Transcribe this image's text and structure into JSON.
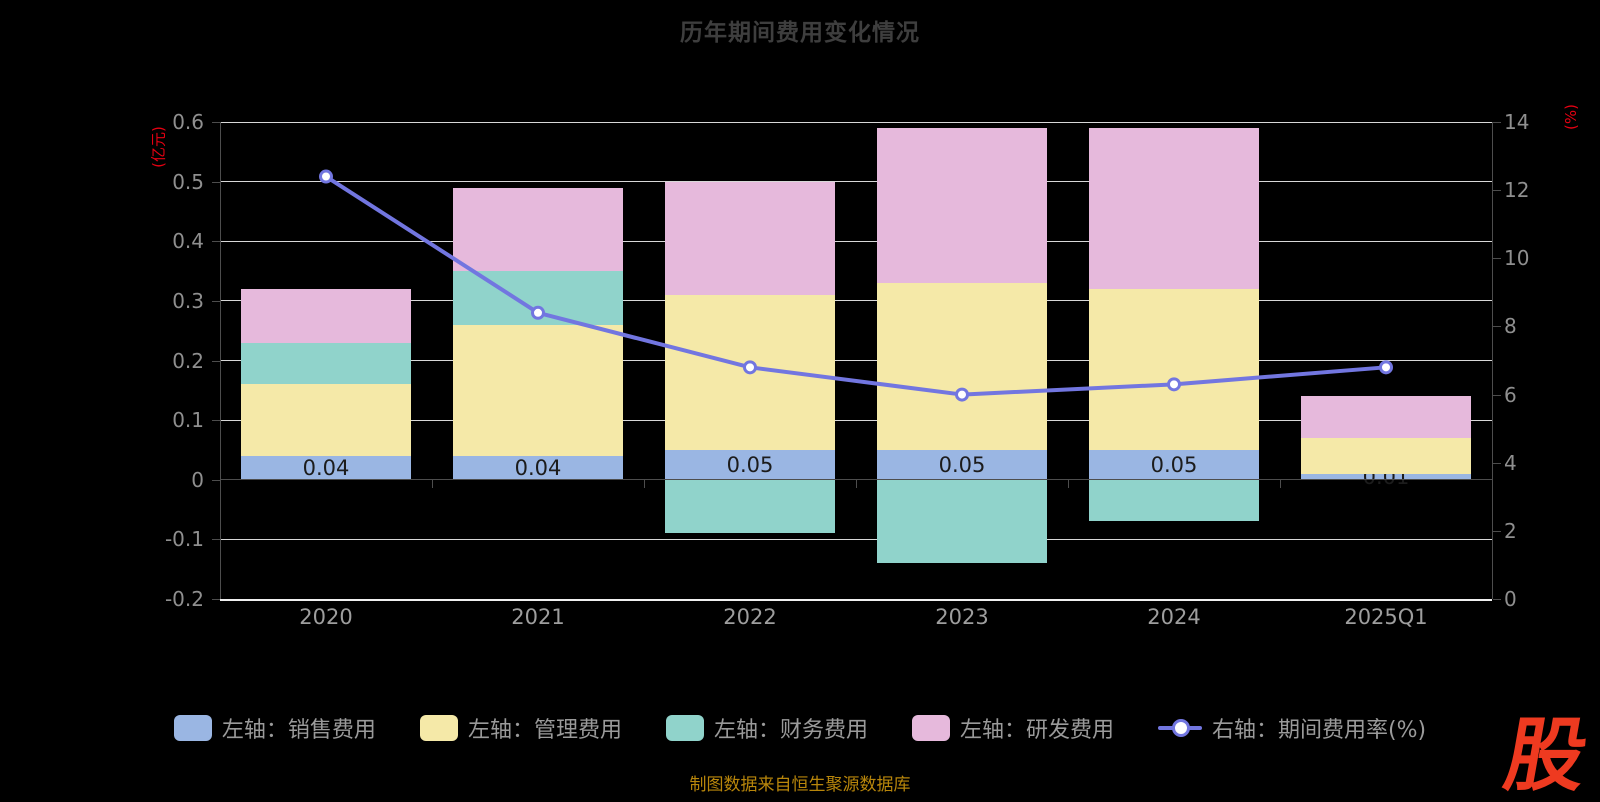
{
  "title": "历年期间费用变化情况",
  "footer": "制图数据来自恒生聚源数据库",
  "logo_text": "股",
  "axes": {
    "left": {
      "name": "(亿元)",
      "ticks": [
        "0.6",
        "0.5",
        "0.4",
        "0.3",
        "0.2",
        "0.1",
        "0",
        "-0.1",
        "-0.2"
      ]
    },
    "right": {
      "name": "(%)",
      "ticks": [
        "14",
        "12",
        "10",
        "8",
        "6",
        "4",
        "2",
        "0"
      ]
    }
  },
  "chart_data": {
    "type": "bar-line-combo",
    "stacked": true,
    "grid": true,
    "legend_position": "bottom",
    "categories": [
      "2020",
      "2021",
      "2022",
      "2023",
      "2024",
      "2025Q1"
    ],
    "left_axis_range": [
      -0.2,
      0.6
    ],
    "right_axis_range": [
      0,
      14
    ],
    "series": [
      {
        "name": "左轴：销售费用",
        "type": "bar",
        "axis": "left",
        "color": "#9ab6e3",
        "values": [
          0.04,
          0.04,
          0.05,
          0.05,
          0.05,
          0.01
        ],
        "data_labels": [
          "0.04",
          "0.04",
          "0.05",
          "0.05",
          "0.05",
          "0.01"
        ]
      },
      {
        "name": "左轴：管理费用",
        "type": "bar",
        "axis": "left",
        "color": "#f5e9a8",
        "values": [
          0.12,
          0.22,
          0.26,
          0.28,
          0.27,
          0.06
        ]
      },
      {
        "name": "左轴：财务费用",
        "type": "bar",
        "axis": "left",
        "color": "#90d3cb",
        "values": [
          0.07,
          0.09,
          -0.09,
          -0.14,
          -0.07,
          0
        ]
      },
      {
        "name": "左轴：研发费用",
        "type": "bar",
        "axis": "left",
        "color": "#e6b9dc",
        "values": [
          0.09,
          0.14,
          0.19,
          0.26,
          0.27,
          0.07
        ]
      },
      {
        "name": "右轴：期间费用率(%)",
        "type": "line",
        "axis": "right",
        "color": "#7276e0",
        "marker": "circle",
        "values": [
          12.4,
          8.4,
          6.8,
          6.0,
          6.3,
          6.8
        ]
      }
    ]
  },
  "colors": {
    "background": "#000000",
    "title_text": "#3e3e3e",
    "axis_name_text": "#e60012",
    "tick_label_text": "#8f8f8f",
    "category_label_text": "#9e9e9e",
    "legend_text": "#9a9a9a",
    "gridline": "#d8d8d8",
    "axis_line": "#4d4d4d",
    "bar_value_label": "#1c1c1c",
    "footer_text": "#b8860b",
    "logo": "#ee3a20"
  }
}
